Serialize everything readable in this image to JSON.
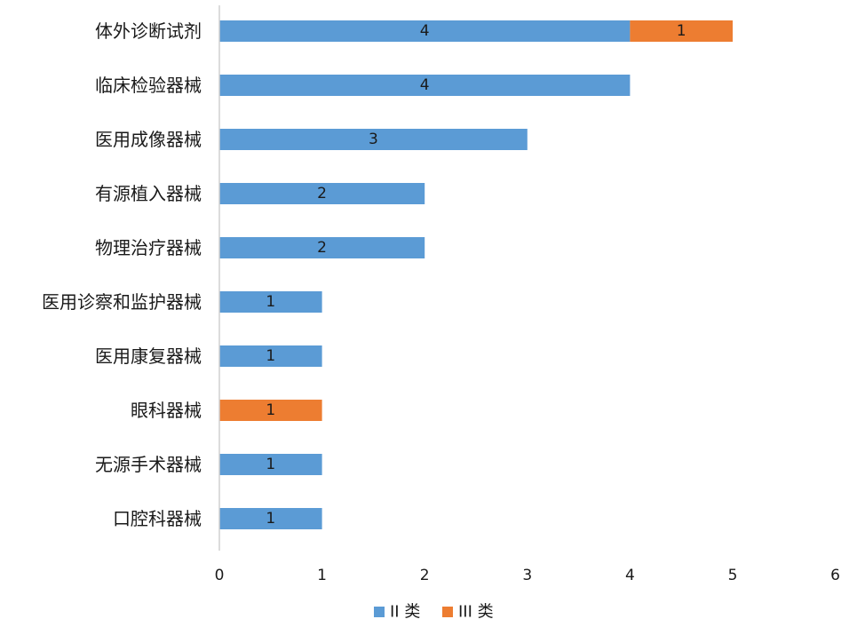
{
  "chart_data": {
    "type": "bar",
    "orientation": "horizontal",
    "stacked": true,
    "categories": [
      "体外诊断试剂",
      "临床检验器械",
      "医用成像器械",
      "有源植入器械",
      "物理治疗器械",
      "医用诊察和监护器械",
      "医用康复器械",
      "眼科器械",
      "无源手术器械",
      "口腔科器械"
    ],
    "series": [
      {
        "name": "II 类",
        "color": "#5b9bd5",
        "values": [
          4,
          4,
          3,
          2,
          2,
          1,
          1,
          0,
          1,
          1
        ]
      },
      {
        "name": "III 类",
        "color": "#ed7d31",
        "values": [
          1,
          0,
          0,
          0,
          0,
          0,
          0,
          1,
          0,
          0
        ]
      }
    ],
    "xlim": [
      0,
      6
    ],
    "xticks": [
      "0",
      "1",
      "2",
      "3",
      "4",
      "5",
      "6"
    ],
    "grid": false,
    "legend": "bottom-center",
    "data_labels": true
  }
}
